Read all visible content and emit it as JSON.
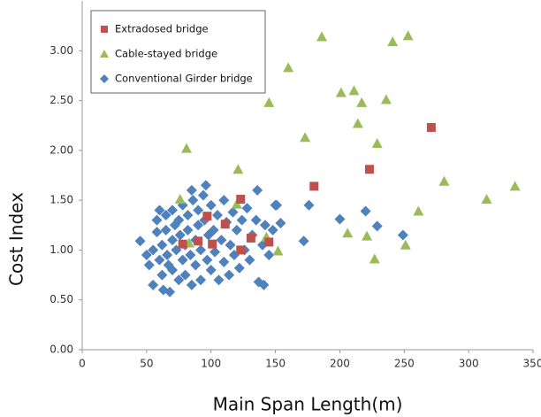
{
  "chart_data": {
    "type": "scatter",
    "xlabel": "Main Span Length(m)",
    "ylabel": "Cost Index",
    "xlim": [
      0,
      350
    ],
    "xticks": [
      0,
      50,
      100,
      150,
      200,
      250,
      300,
      350
    ],
    "ylim": [
      0,
      3.5
    ],
    "yticks": [
      {
        "value": 0,
        "label": "0.00"
      },
      {
        "value": 0.5,
        "label": "0.50"
      },
      {
        "value": 1,
        "label": "1.00"
      },
      {
        "value": 1.5,
        "label": "1.50"
      },
      {
        "value": 2,
        "label": "2.00"
      },
      {
        "value": 2.5,
        "label": "2.50"
      },
      {
        "value": 3,
        "label": "3.00"
      }
    ],
    "legend": "upper left",
    "series": [
      {
        "name": "Extradosed bridge",
        "color": "#c0504d",
        "marker": "square",
        "x": [
          271,
          223,
          180,
          123,
          97,
          111,
          101,
          78,
          131,
          123,
          145,
          90
        ],
        "values": [
          2.23,
          1.81,
          1.64,
          1.51,
          1.34,
          1.26,
          1.06,
          1.06,
          1.12,
          1.0,
          1.08,
          1.09
        ]
      },
      {
        "name": "Cable-stayed bridge",
        "color": "#9bbb59",
        "marker": "triangle",
        "x": [
          186,
          253,
          241,
          160,
          201,
          211,
          217,
          236,
          145,
          173,
          214,
          229,
          81,
          121,
          281,
          336,
          314,
          261,
          76,
          120,
          206,
          221,
          227,
          251,
          152,
          143,
          83
        ],
        "values": [
          3.14,
          3.15,
          3.09,
          2.83,
          2.58,
          2.6,
          2.48,
          2.51,
          2.48,
          2.13,
          2.27,
          2.07,
          2.02,
          1.81,
          1.69,
          1.64,
          1.51,
          1.39,
          1.51,
          1.46,
          1.17,
          1.14,
          0.91,
          1.05,
          0.99,
          1.13,
          1.07
        ]
      },
      {
        "name": "Conventional Girder bridge",
        "color": "#4f81bd",
        "marker": "diamond",
        "x": [
          45,
          50,
          52,
          55,
          55,
          58,
          58,
          60,
          60,
          62,
          62,
          63,
          65,
          65,
          66,
          67,
          68,
          70,
          70,
          70,
          72,
          73,
          75,
          75,
          76,
          78,
          78,
          80,
          80,
          82,
          82,
          84,
          85,
          85,
          86,
          88,
          88,
          90,
          90,
          92,
          92,
          94,
          95,
          96,
          97,
          98,
          100,
          100,
          102,
          103,
          105,
          106,
          108,
          110,
          110,
          112,
          114,
          115,
          117,
          118,
          120,
          122,
          124,
          126,
          128,
          130,
          132,
          135,
          137,
          140,
          142,
          145,
          148,
          150,
          200,
          220,
          249,
          229,
          176,
          172,
          151,
          136,
          154,
          141
        ],
        "values": [
          1.09,
          0.95,
          0.85,
          1.0,
          0.65,
          1.3,
          1.18,
          1.4,
          0.9,
          1.05,
          0.75,
          0.6,
          1.35,
          1.2,
          0.95,
          0.85,
          0.58,
          1.4,
          1.1,
          0.8,
          1.25,
          1.0,
          0.7,
          1.3,
          1.15,
          0.9,
          1.45,
          1.05,
          0.75,
          1.35,
          1.2,
          0.95,
          1.6,
          0.65,
          1.5,
          1.1,
          0.85,
          1.4,
          1.25,
          1.0,
          0.7,
          1.55,
          1.3,
          1.65,
          0.9,
          1.15,
          0.8,
          1.45,
          1.2,
          0.98,
          1.35,
          0.7,
          1.1,
          0.88,
          1.5,
          1.28,
          0.75,
          1.05,
          1.38,
          0.95,
          1.2,
          0.82,
          1.3,
          1.0,
          1.42,
          0.9,
          1.15,
          1.3,
          0.68,
          1.05,
          1.25,
          0.95,
          1.2,
          1.45,
          1.31,
          1.39,
          1.15,
          1.24,
          1.45,
          1.09,
          1.45,
          1.6,
          1.27,
          0.65
        ]
      }
    ]
  }
}
